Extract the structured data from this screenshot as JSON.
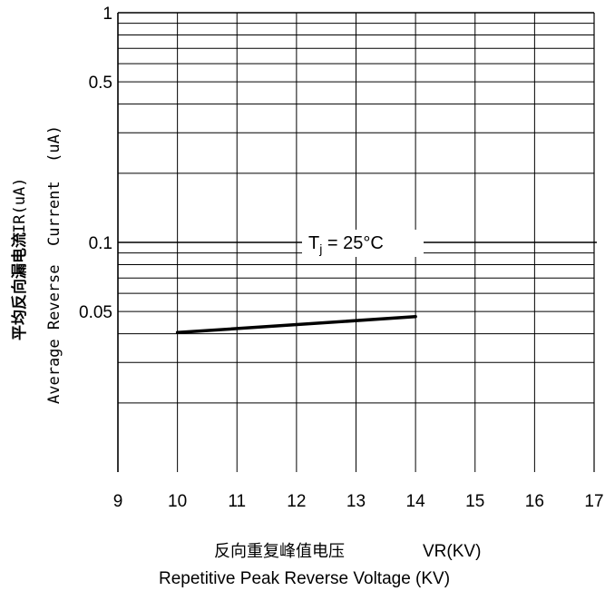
{
  "chart_data": {
    "type": "line",
    "y_scale": "log",
    "grid": true,
    "xlim": [
      9,
      17
    ],
    "ylim": [
      0.01,
      1
    ],
    "x_ticks": [
      "9",
      "10",
      "11",
      "12",
      "13",
      "14",
      "15",
      "16",
      "17"
    ],
    "y_tick_labels": [
      {
        "value": 1,
        "label": "1"
      },
      {
        "value": 0.5,
        "label": "0.5"
      },
      {
        "value": 0.1,
        "label": "0.1"
      },
      {
        "value": 0.05,
        "label": "0.05"
      }
    ],
    "ylabel_zh": "平均反向漏电流",
    "ylabel_unit": "IR(uA)",
    "ylabel_en": "Average Reverse  Current  (uA)",
    "xlabel_zh": "反向重复峰值电压",
    "xlabel_unit": "VR(KV)",
    "xlabel_en": "Repetitive Peak Reverse Voltage (KV)",
    "annotation": {
      "main": "T",
      "sub": "j",
      "rest": " = 25°C"
    },
    "series": [
      {
        "x": [
          10,
          14
        ],
        "y": [
          0.0405,
          0.0475
        ]
      }
    ]
  }
}
